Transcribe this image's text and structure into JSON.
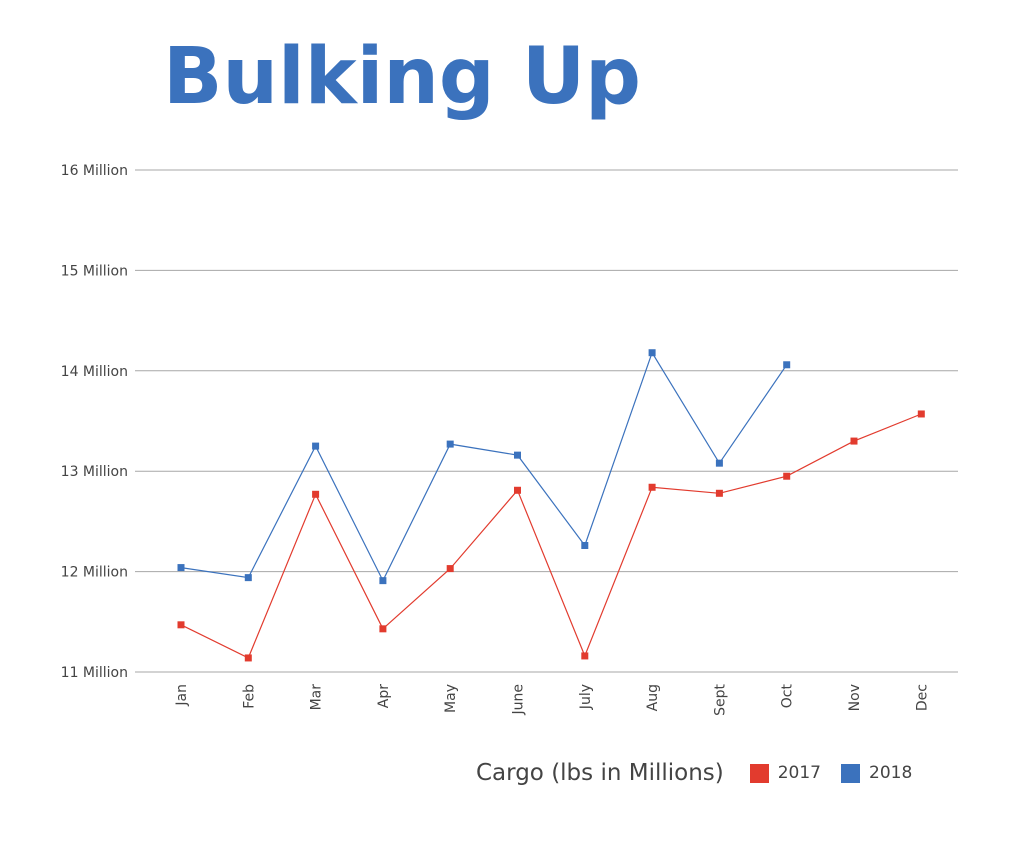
{
  "chart_data": {
    "type": "line",
    "title": "Bulking Up",
    "categories": [
      "Jan",
      "Feb",
      "Mar",
      "Apr",
      "May",
      "June",
      "July",
      "Aug",
      "Sept",
      "Oct",
      "Nov",
      "Dec"
    ],
    "ylim": [
      11,
      16
    ],
    "y_ticks": [
      11,
      12,
      13,
      14,
      15,
      16
    ],
    "y_tick_labels": [
      "11 Million",
      "12 Million",
      "13 Million",
      "14 Million",
      "15 Million",
      "16 Million"
    ],
    "grid": true,
    "legend_position": "bottom-right",
    "legend_title": "Cargo (lbs in Millions)",
    "series": [
      {
        "name": "2017",
        "color": "#e23b2e",
        "values": [
          11.47,
          11.14,
          12.77,
          11.43,
          12.03,
          12.81,
          11.16,
          12.84,
          12.78,
          12.95,
          13.3,
          13.57
        ]
      },
      {
        "name": "2018",
        "color": "#3b72bd",
        "values": [
          12.04,
          11.94,
          13.25,
          11.91,
          13.27,
          13.16,
          12.26,
          14.18,
          13.08,
          14.06,
          null,
          null
        ]
      }
    ]
  }
}
